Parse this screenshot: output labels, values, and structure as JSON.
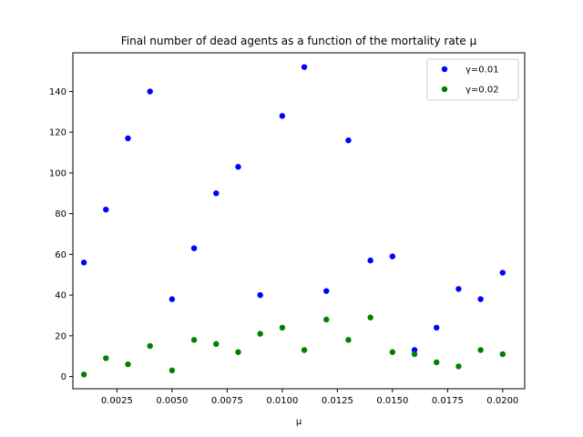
{
  "chart_data": {
    "type": "scatter",
    "title": "Final number of dead agents as a function of the mortality rate μ",
    "xlabel": "μ",
    "ylabel": "",
    "xlim": [
      0.0005,
      0.021
    ],
    "ylim": [
      -6,
      159
    ],
    "xticks": [
      "0.0025",
      "0.0050",
      "0.0075",
      "0.0100",
      "0.0125",
      "0.0150",
      "0.0175",
      "0.0200"
    ],
    "yticks": [
      "0",
      "20",
      "40",
      "60",
      "80",
      "100",
      "120",
      "140"
    ],
    "legend_position": "top-right",
    "grid": false,
    "series": [
      {
        "name": "γ=0.01",
        "color": "#0000ff",
        "x": [
          0.001,
          0.002,
          0.003,
          0.004,
          0.005,
          0.006,
          0.007,
          0.008,
          0.009,
          0.01,
          0.011,
          0.012,
          0.013,
          0.014,
          0.015,
          0.016,
          0.017,
          0.018,
          0.019,
          0.02
        ],
        "y": [
          56,
          82,
          117,
          140,
          38,
          63,
          90,
          103,
          40,
          128,
          152,
          42,
          116,
          57,
          59,
          13,
          24,
          43,
          38,
          51
        ]
      },
      {
        "name": "γ=0.02",
        "color": "#008000",
        "x": [
          0.001,
          0.002,
          0.003,
          0.004,
          0.005,
          0.006,
          0.007,
          0.008,
          0.009,
          0.01,
          0.011,
          0.012,
          0.013,
          0.014,
          0.015,
          0.016,
          0.017,
          0.018,
          0.019,
          0.02
        ],
        "y": [
          1,
          9,
          6,
          15,
          3,
          18,
          16,
          12,
          21,
          24,
          13,
          28,
          18,
          29,
          12,
          11,
          7,
          5,
          13,
          11
        ]
      }
    ]
  }
}
